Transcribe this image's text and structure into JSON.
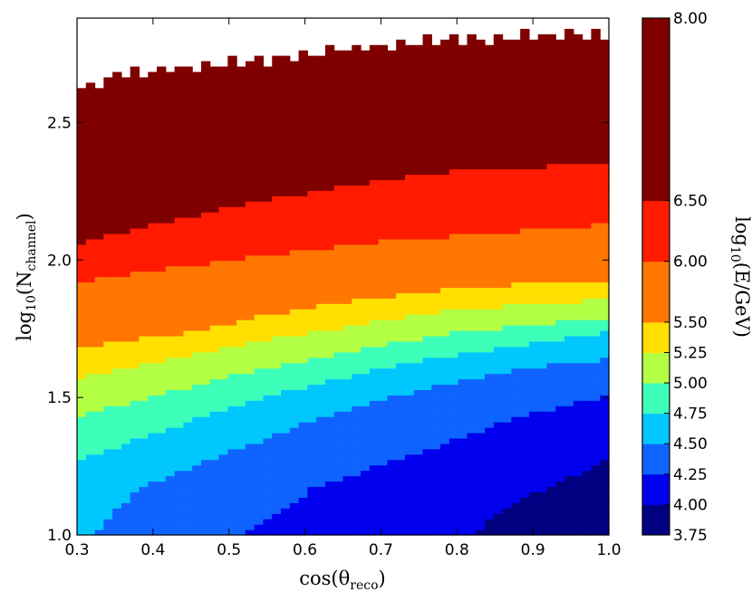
{
  "chart_data": {
    "type": "heatmap",
    "title": "",
    "xlabel_parts": {
      "base": "cos(θ",
      "sub": "reco",
      "tail": ")"
    },
    "ylabel_parts": {
      "base": "log",
      "sub1": "10",
      "mid": "(N",
      "sub2": "channel",
      "tail": ")"
    },
    "colorbar_label_parts": {
      "base": "log",
      "sub": "10",
      "tail": "(E/GeV)"
    },
    "xlim": [
      0.3,
      1.0
    ],
    "ylim": [
      1.0,
      2.88
    ],
    "xticks": [
      "0.3",
      "0.4",
      "0.5",
      "0.6",
      "0.7",
      "0.8",
      "0.9",
      "1.0"
    ],
    "yticks": [
      "1.0",
      "1.5",
      "2.0",
      "2.5"
    ],
    "colorbar_levels": [
      "3.75",
      "4.00",
      "4.25",
      "4.50",
      "4.75",
      "5.00",
      "5.25",
      "5.50",
      "6.00",
      "6.50",
      "8.00"
    ],
    "colorbar_colors": [
      "#000080",
      "#0000ee",
      "#0f63ff",
      "#00c8ff",
      "#3dffb9",
      "#b3ff44",
      "#ffe000",
      "#ff7700",
      "#ff1a00",
      "#800000"
    ],
    "contour_boundaries": [
      {
        "level": "4.00",
        "points": [
          [
            0.82,
            1.0
          ],
          [
            0.86,
            1.1
          ],
          [
            0.92,
            1.17
          ],
          [
            1.0,
            1.28
          ]
        ]
      },
      {
        "level": "4.25",
        "points": [
          [
            0.52,
            1.0
          ],
          [
            0.61,
            1.17
          ],
          [
            0.75,
            1.3
          ],
          [
            0.88,
            1.43
          ],
          [
            1.0,
            1.51
          ]
        ]
      },
      {
        "level": "4.50",
        "points": [
          [
            0.32,
            1.0
          ],
          [
            0.38,
            1.17
          ],
          [
            0.5,
            1.3
          ],
          [
            0.62,
            1.43
          ],
          [
            0.78,
            1.55
          ],
          [
            0.92,
            1.62
          ],
          [
            1.0,
            1.64
          ]
        ]
      },
      {
        "level": "4.75",
        "points": [
          [
            0.3,
            1.27
          ],
          [
            0.4,
            1.37
          ],
          [
            0.5,
            1.46
          ],
          [
            0.6,
            1.54
          ],
          [
            0.72,
            1.62
          ],
          [
            0.86,
            1.68
          ],
          [
            1.0,
            1.74
          ]
        ]
      },
      {
        "level": "5.00",
        "points": [
          [
            0.3,
            1.43
          ],
          [
            0.42,
            1.52
          ],
          [
            0.55,
            1.61
          ],
          [
            0.68,
            1.68
          ],
          [
            0.8,
            1.74
          ],
          [
            1.0,
            1.79
          ]
        ]
      },
      {
        "level": "5.25",
        "points": [
          [
            0.3,
            1.57
          ],
          [
            0.42,
            1.64
          ],
          [
            0.55,
            1.71
          ],
          [
            0.68,
            1.77
          ],
          [
            0.8,
            1.82
          ],
          [
            1.0,
            1.86
          ]
        ]
      },
      {
        "level": "5.50",
        "points": [
          [
            0.3,
            1.68
          ],
          [
            0.45,
            1.74
          ],
          [
            0.55,
            1.8
          ],
          [
            0.68,
            1.86
          ],
          [
            0.8,
            1.9
          ],
          [
            1.0,
            1.93
          ]
        ]
      },
      {
        "level": "6.00",
        "points": [
          [
            0.3,
            1.92
          ],
          [
            0.42,
            1.97
          ],
          [
            0.55,
            2.02
          ],
          [
            0.7,
            2.07
          ],
          [
            0.85,
            2.1
          ],
          [
            1.0,
            2.13
          ]
        ]
      },
      {
        "level": "6.50",
        "points": [
          [
            0.3,
            2.06
          ],
          [
            0.4,
            2.13
          ],
          [
            0.55,
            2.22
          ],
          [
            0.7,
            2.29
          ],
          [
            0.82,
            2.33
          ],
          [
            1.0,
            2.35
          ]
        ]
      }
    ],
    "upper_data_edge": [
      [
        0.3,
        2.62
      ],
      [
        0.35,
        2.67
      ],
      [
        0.45,
        2.7
      ],
      [
        0.55,
        2.73
      ],
      [
        0.65,
        2.77
      ],
      [
        0.75,
        2.79
      ],
      [
        0.85,
        2.81
      ],
      [
        1.0,
        2.82
      ]
    ]
  }
}
